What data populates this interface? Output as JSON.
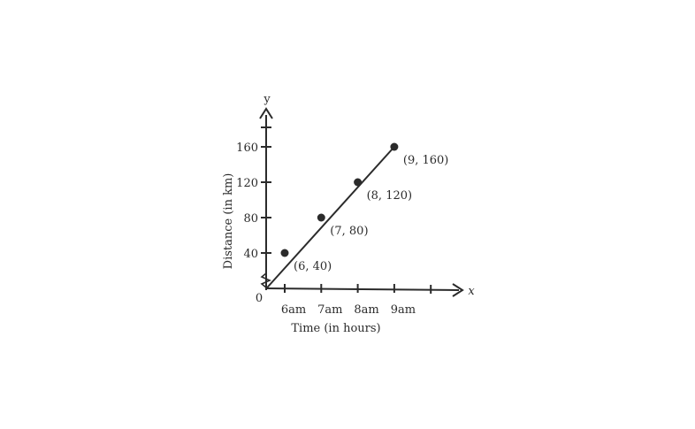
{
  "chart_data": {
    "type": "line",
    "x_letter": "x",
    "y_letter": "y",
    "origin_label": "0",
    "xlabel": "Time (in hours)",
    "ylabel": "Distance (in km)",
    "x_ticks": [
      {
        "value": 6,
        "label": "6am"
      },
      {
        "value": 7,
        "label": "7am"
      },
      {
        "value": 8,
        "label": "8am"
      },
      {
        "value": 9,
        "label": "9am"
      }
    ],
    "y_ticks": [
      {
        "value": 40,
        "label": "40"
      },
      {
        "value": 80,
        "label": "80"
      },
      {
        "value": 120,
        "label": "120"
      },
      {
        "value": 160,
        "label": "160"
      }
    ],
    "points": [
      {
        "x": 6,
        "y": 40,
        "label": "(6, 40)"
      },
      {
        "x": 7,
        "y": 80,
        "label": "(7, 80)"
      },
      {
        "x": 8,
        "y": 120,
        "label": "(8, 120)"
      },
      {
        "x": 9,
        "y": 160,
        "label": "(9, 160)"
      }
    ],
    "line_from": {
      "x": 5.5,
      "y": 0
    },
    "grid": false,
    "colors": {
      "ink": "#2b2b2b"
    }
  }
}
